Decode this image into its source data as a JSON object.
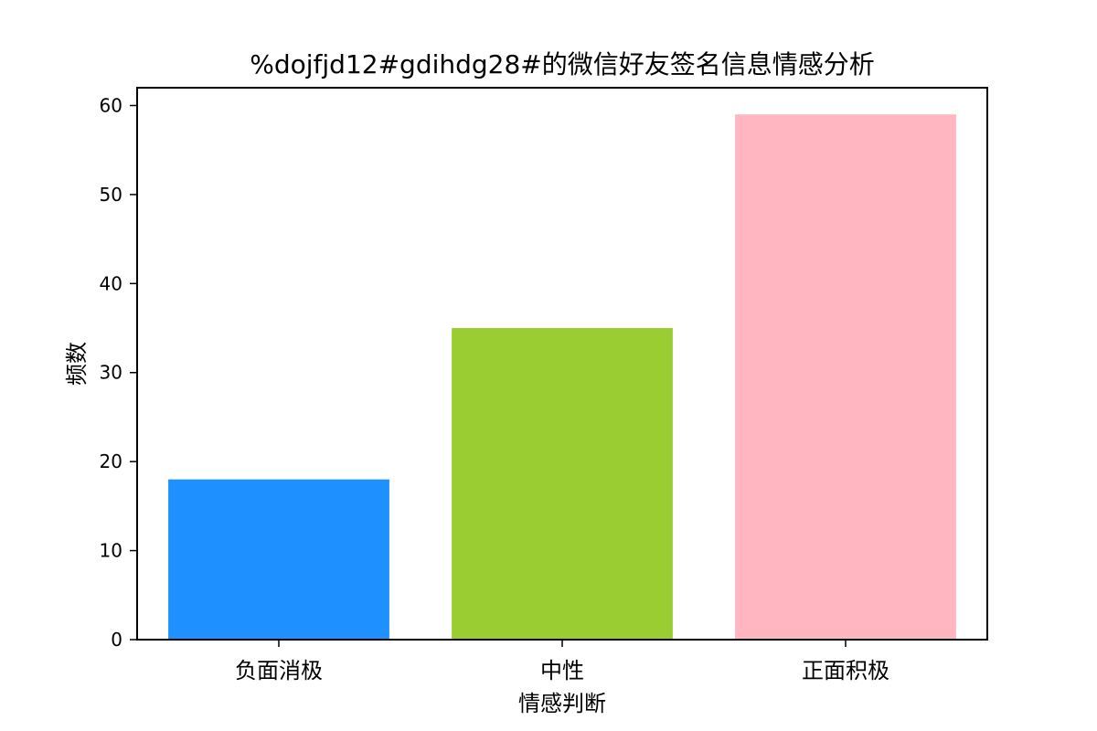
{
  "chart_data": {
    "type": "bar",
    "title": "%dojfjd12#gdihdg28#的微信好友签名信息情感分析",
    "xlabel": "情感判断",
    "ylabel": "频数",
    "categories": [
      "负面消极",
      "中性",
      "正面积极"
    ],
    "values": [
      18,
      35,
      59
    ],
    "colors": [
      "#1E90FF",
      "#9ACD32",
      "#FFB6C1"
    ],
    "ylim": [
      0,
      62
    ],
    "yticks": [
      0,
      10,
      20,
      30,
      40,
      50,
      60
    ],
    "grid": false
  }
}
